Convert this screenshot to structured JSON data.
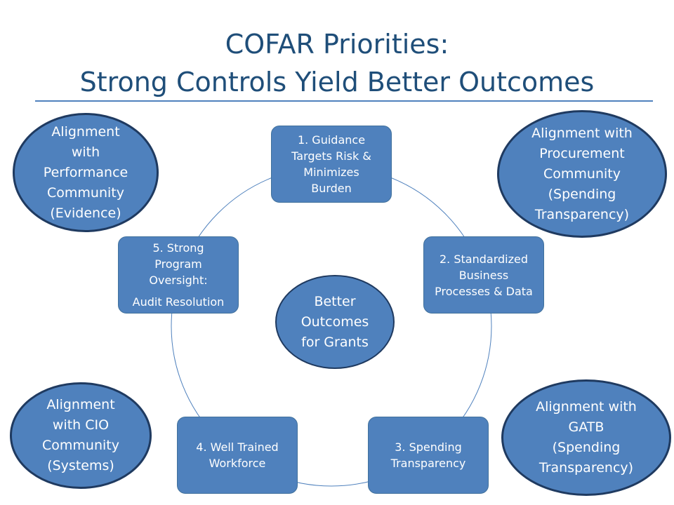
{
  "slide": {
    "title_line1": "COFAR Priorities:",
    "title_line2": "Strong Controls Yield Better Outcomes"
  },
  "cycle": {
    "center": "Better\nOutcomes\nfor Grants",
    "node1": "1. Guidance\nTargets Risk &\nMinimizes\nBurden",
    "node2": "2. Standardized\nBusiness\nProcesses & Data",
    "node3": "3. Spending\nTransparency",
    "node4": "4. Well Trained\nWorkforce",
    "node5_main": "5. Strong\nProgram\nOversight:",
    "node5_sub": "Audit Resolution"
  },
  "alignments": {
    "performance": "Alignment\nwith\nPerformance\nCommunity\n(Evidence)",
    "procurement": "Alignment with\nProcurement\nCommunity\n(Spending\nTransparency)",
    "cio": "Alignment\nwith CIO\nCommunity\n(Systems)",
    "gatb": "Alignment with\nGATB\n(Spending\nTransparency)"
  },
  "colors": {
    "title": "#1f4e79",
    "shape_fill": "#4f81bd",
    "shape_text": "#ffffff",
    "oval_border": "#1f3a60",
    "ring": "#4f81bd"
  }
}
